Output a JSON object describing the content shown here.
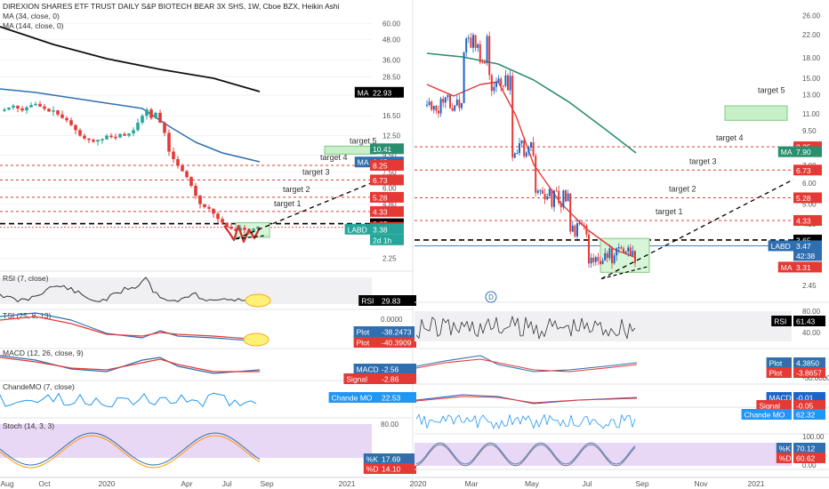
{
  "chart_data": [
    {
      "type": "candlestick",
      "title": "DIREXION SHARES ETF TRUST DAILY S&P BIOTECH BEAR 3X SHS, 1W, Cboe BZX, Heikin Ashi",
      "indicators": [
        "MA (34, close, 0)",
        "MA (144, close, 0)"
      ],
      "x_ticks": [
        "Aug",
        "Oct",
        "2020",
        "Apr",
        "Jul",
        "Sep",
        "2021"
      ],
      "y_ticks": [
        60.0,
        48.0,
        36.0,
        28.5,
        22.0,
        16.5,
        12.5,
        9.5,
        7.5,
        6.0,
        4.8,
        3.8,
        2.95,
        2.25
      ],
      "ylim": [
        2.0,
        70.0
      ],
      "y_scale": "log",
      "price_labels": [
        {
          "label": "MA",
          "value": "22.93",
          "color": "#000000"
        },
        {
          "label": "",
          "value": "10.41",
          "color": "#2a8f6e"
        },
        {
          "label": "MA",
          "value": "8.65",
          "color": "#2f6fb0"
        },
        {
          "label": "",
          "value": "8.25",
          "color": "#e53935"
        },
        {
          "label": "",
          "value": "6.73",
          "color": "#e53935"
        },
        {
          "label": "",
          "value": "5.28",
          "color": "#e53935"
        },
        {
          "label": "",
          "value": "4.33",
          "color": "#e53935"
        },
        {
          "label": "",
          "value": "3.65",
          "color": "#000000"
        },
        {
          "label": "",
          "value": "3.47",
          "color": "#e53935"
        },
        {
          "label": "LABD",
          "value": "3.38",
          "color": "#26a69a"
        },
        {
          "label": "",
          "value": "2d 1h",
          "color": "#26a69a"
        }
      ],
      "annotations": [
        "target 5",
        "target 4",
        "target 3",
        "target 2",
        "target 1"
      ],
      "panes": [
        {
          "name": "RSI (7, close)",
          "labels": [
            {
              "label": "RSI",
              "value": "29.83"
            }
          ]
        },
        {
          "name": "TSI (25, 8, 13)",
          "y_ticks": [
            "0.0000"
          ],
          "labels": [
            {
              "label": "Plot",
              "value": "-38.2473"
            },
            {
              "label": "Plot",
              "value": "-40.3909"
            }
          ]
        },
        {
          "name": "MACD (12, 26, close, 9)",
          "labels": [
            {
              "label": "MACD",
              "value": "-2.56"
            },
            {
              "label": "Signal",
              "value": "-2.86"
            }
          ]
        },
        {
          "name": "ChandeMO (7, close)",
          "labels": [
            {
              "label": "Chande MO",
              "value": "22.53"
            }
          ]
        },
        {
          "name": "Stoch (14, 3, 3)",
          "y_ticks": [
            "80.00",
            "20.00"
          ],
          "labels": [
            {
              "label": "%K",
              "value": "17.69"
            },
            {
              "label": "%D",
              "value": "14.10"
            }
          ]
        }
      ]
    },
    {
      "type": "candlestick",
      "x_ticks": [
        "2020",
        "Mar",
        "May",
        "Jul",
        "Sep",
        "Nov",
        "2021"
      ],
      "y_ticks": [
        26.0,
        22.0,
        18.0,
        15.0,
        13.0,
        11.0,
        9.5,
        8.0,
        7.0,
        6.0,
        5.0,
        4.2,
        3.5,
        2.95,
        2.45
      ],
      "ylim": [
        2.2,
        28.0
      ],
      "y_scale": "log",
      "price_labels": [
        {
          "label": "",
          "value": "8.25",
          "color": "#e53935"
        },
        {
          "label": "MA",
          "value": "7.90",
          "color": "#2a8f6e"
        },
        {
          "label": "",
          "value": "6.73",
          "color": "#e53935"
        },
        {
          "label": "",
          "value": "5.28",
          "color": "#e53935"
        },
        {
          "label": "",
          "value": "4.33",
          "color": "#e53935"
        },
        {
          "label": "",
          "value": "3.65",
          "color": "#000000"
        },
        {
          "label": "LABD",
          "value": "3.47",
          "color": "#2f6fb0"
        },
        {
          "label": "",
          "value": "42:38",
          "color": "#2f6fb0"
        },
        {
          "label": "MA",
          "value": "3.31",
          "color": "#e53935"
        }
      ],
      "annotations": [
        "target 5",
        "target 4",
        "target 3",
        "target 2",
        "target 1"
      ],
      "marker": "D",
      "panes": [
        {
          "name": "RSI",
          "y_ticks": [
            "80.00",
            "40.00"
          ],
          "labels": [
            {
              "label": "RSI",
              "value": "61.43"
            }
          ]
        },
        {
          "name": "TSI",
          "y_ticks": [
            "-50.0000"
          ],
          "labels": [
            {
              "label": "Plot",
              "value": "4.3850"
            },
            {
              "label": "Plot",
              "value": "-3.8657"
            }
          ]
        },
        {
          "name": "MACD",
          "labels": [
            {
              "label": "MACD",
              "value": "-0.01"
            },
            {
              "label": "Signal",
              "value": "-0.05"
            }
          ]
        },
        {
          "name": "ChandeMO",
          "labels": [
            {
              "label": "Chande MO",
              "value": "62.32"
            }
          ]
        },
        {
          "name": "Stoch",
          "y_ticks": [
            "100.00",
            "0.00"
          ],
          "labels": [
            {
              "label": "%K",
              "value": "70.12"
            },
            {
              "label": "%D",
              "value": "60.62"
            }
          ]
        }
      ]
    }
  ]
}
